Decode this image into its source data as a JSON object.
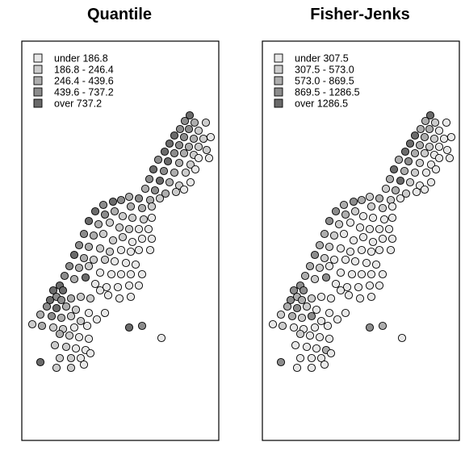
{
  "chart_data": [
    {
      "type": "scatter",
      "title": "Quantile",
      "legend": {
        "placement": "top-left",
        "entries": [
          {
            "label": "under 186.8",
            "color": "#e8e8e8"
          },
          {
            "label": "186.8 - 246.4",
            "color": "#cccccc"
          },
          {
            "label": "246.4 - 439.6",
            "color": "#adadad"
          },
          {
            "label": "439.6 - 737.2",
            "color": "#8c8c8c"
          },
          {
            "label": "over 737.2",
            "color": "#6a6a6a"
          }
        ]
      },
      "grid": false,
      "axes": false
    },
    {
      "type": "scatter",
      "title": "Fisher-Jenks",
      "legend": {
        "placement": "top-left",
        "entries": [
          {
            "label": "under 307.5",
            "color": "#e8e8e8"
          },
          {
            "label": "307.5 - 573.0",
            "color": "#cccccc"
          },
          {
            "label": "573.0 - 869.5",
            "color": "#adadad"
          },
          {
            "label": "869.5 - 1286.5",
            "color": "#8c8c8c"
          },
          {
            "label": "over 1286.5",
            "color": "#6a6a6a"
          }
        ]
      },
      "grid": false,
      "axes": false
    }
  ]
}
